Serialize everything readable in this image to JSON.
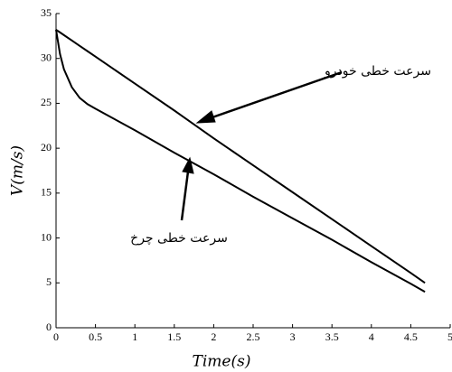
{
  "chart_data": {
    "type": "line",
    "x": [
      0,
      0.05,
      0.1,
      0.2,
      0.3,
      0.4,
      0.5,
      1,
      1.5,
      2,
      2.5,
      3,
      3.5,
      4,
      4.5,
      4.68
    ],
    "series": [
      {
        "name": "سرعت خطی خودرو",
        "color": "#000000",
        "values": [
          33.2,
          32.9,
          32.6,
          32.0,
          31.4,
          30.8,
          30.2,
          27.2,
          24.2,
          21.1,
          18.1,
          15.1,
          12.1,
          9.1,
          6.1,
          5.0
        ]
      },
      {
        "name": "سرعت خطی چرخ",
        "color": "#000000",
        "values": [
          33.2,
          30.5,
          28.8,
          26.8,
          25.6,
          24.9,
          24.4,
          22.0,
          19.5,
          17.1,
          14.6,
          12.2,
          9.8,
          7.3,
          4.9,
          4.0
        ]
      }
    ],
    "x_label": "Time(s)",
    "y_label": "V(m/s)",
    "xlim": [
      0,
      5
    ],
    "xticks": [
      0,
      0.5,
      1,
      1.5,
      2,
      2.5,
      3,
      3.5,
      4,
      4.5,
      5
    ],
    "ylim": [
      0,
      35
    ],
    "yticks": [
      0,
      5,
      10,
      15,
      20,
      25,
      30,
      35
    ]
  }
}
